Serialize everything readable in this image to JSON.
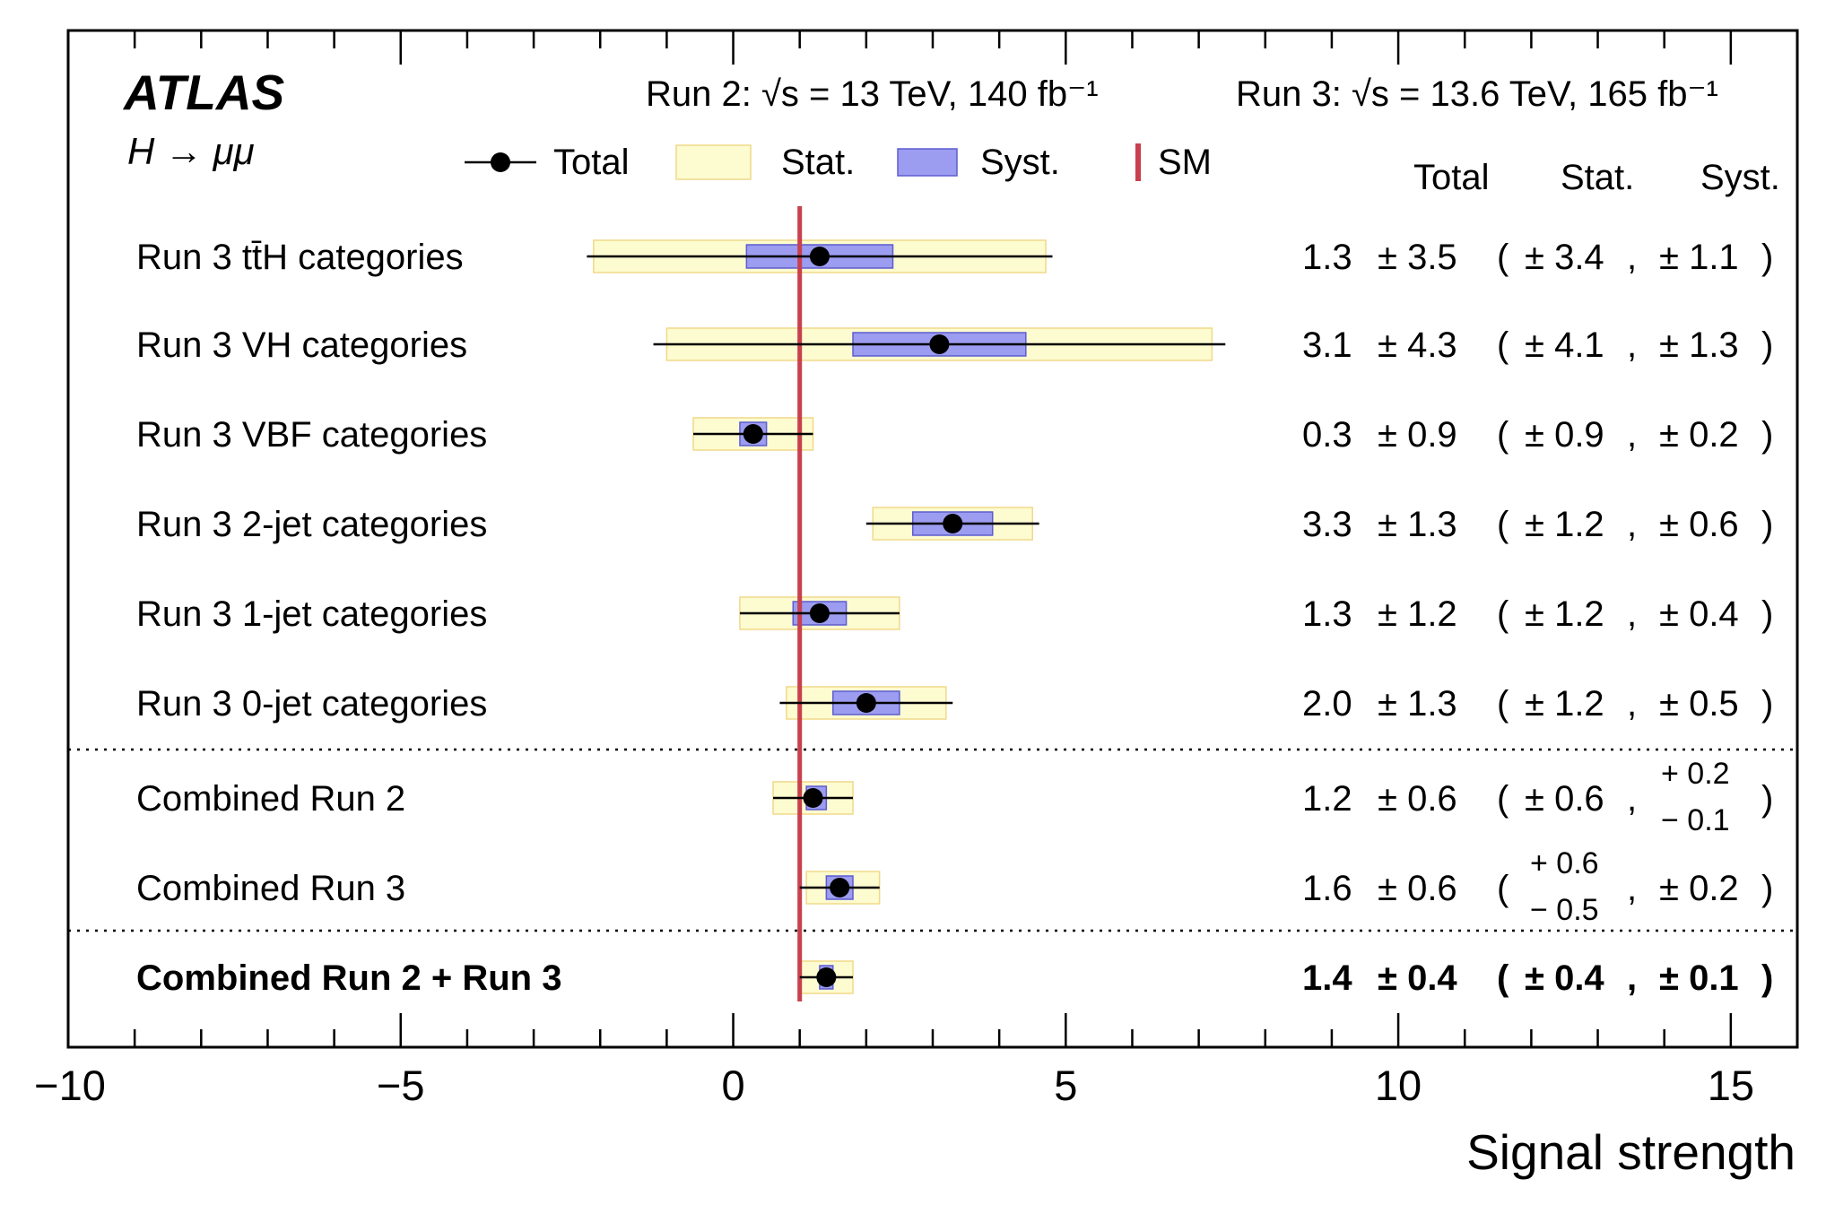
{
  "chart_data": {
    "type": "forest",
    "experiment": "ATLAS",
    "process": "H → μμ",
    "energy_labels": {
      "run2": "Run 2: √s = 13 TeV, 140 fb⁻¹",
      "run3": "Run 3: √s = 13.6 TeV, 165 fb⁻¹"
    },
    "legend": {
      "total": "Total",
      "stat": "Stat.",
      "syst": "Syst.",
      "sm": "SM"
    },
    "column_headers": {
      "total": "Total",
      "stat": "Stat.",
      "syst": "Syst."
    },
    "xlabel": "Signal strength",
    "xlim": [
      -10,
      16
    ],
    "x_ticks": [
      "−10",
      "−5",
      "0",
      "5",
      "10",
      "15"
    ],
    "x_tick_values": [
      -10,
      -5,
      0,
      5,
      10,
      15
    ],
    "sm_value": 1,
    "colors": {
      "stat": "#fdfbd0",
      "stat_edge": "#f0d98a",
      "syst": "#9c9cf0",
      "syst_edge": "#5d5dd0",
      "sm": "#c8404e"
    },
    "entries": [
      {
        "label": "Run 3 tt̄H categories",
        "value": 1.3,
        "total": 3.5,
        "stat": 3.4,
        "syst": 1.1,
        "text": {
          "value": "1.3",
          "total": "± 3.5",
          "open": "(",
          "stat": "± 3.4",
          "comma": ",",
          "syst": "± 1.1",
          "close": ")"
        }
      },
      {
        "label": "Run 3 VH categories",
        "value": 3.1,
        "total": 4.3,
        "stat": 4.1,
        "syst": 1.3,
        "text": {
          "value": "3.1",
          "total": "± 4.3",
          "open": "(",
          "stat": "± 4.1",
          "comma": ",",
          "syst": "± 1.3",
          "close": ")"
        }
      },
      {
        "label": "Run 3 VBF categories",
        "value": 0.3,
        "total": 0.9,
        "stat": 0.9,
        "syst": 0.2,
        "text": {
          "value": "0.3",
          "total": "± 0.9",
          "open": "(",
          "stat": "± 0.9",
          "comma": ",",
          "syst": "± 0.2",
          "close": ")"
        }
      },
      {
        "label": "Run 3 2-jet categories",
        "value": 3.3,
        "total": 1.3,
        "stat": 1.2,
        "syst": 0.6,
        "text": {
          "value": "3.3",
          "total": "± 1.3",
          "open": "(",
          "stat": "± 1.2",
          "comma": ",",
          "syst": "± 0.6",
          "close": ")"
        }
      },
      {
        "label": "Run 3 1-jet categories",
        "value": 1.3,
        "total": 1.2,
        "stat": 1.2,
        "syst": 0.4,
        "text": {
          "value": "1.3",
          "total": "± 1.2",
          "open": "(",
          "stat": "± 1.2",
          "comma": ",",
          "syst": "± 0.4",
          "close": ")"
        }
      },
      {
        "label": "Run 3 0-jet categories",
        "value": 2.0,
        "total": 1.3,
        "stat": 1.2,
        "syst": 0.5,
        "text": {
          "value": "2.0",
          "total": "± 1.3",
          "open": "(",
          "stat": "± 1.2",
          "comma": ",",
          "syst": "± 0.5",
          "close": ")"
        }
      },
      {
        "label": "Combined Run 2",
        "value": 1.2,
        "total": 0.6,
        "stat": 0.6,
        "syst_up": 0.2,
        "syst_down": 0.1,
        "text": {
          "value": "1.2",
          "total": "± 0.6",
          "open": "(",
          "stat": "± 0.6",
          "comma": ",",
          "syst_up": "+ 0.2",
          "syst_down": "− 0.1",
          "close": ")"
        }
      },
      {
        "label": "Combined Run 3",
        "value": 1.6,
        "total": 0.6,
        "stat_up": 0.6,
        "stat_down": 0.5,
        "syst": 0.2,
        "text": {
          "value": "1.6",
          "total": "± 0.6",
          "open": "(",
          "stat_up": "+ 0.6",
          "stat_down": "− 0.5",
          "comma": ",",
          "syst": "± 0.2",
          "close": ")"
        }
      },
      {
        "label": "Combined Run 2 + Run 3",
        "value": 1.4,
        "total": 0.4,
        "stat": 0.4,
        "syst": 0.1,
        "bold": true,
        "text": {
          "value": "1.4",
          "total": "± 0.4",
          "open": "(",
          "stat": "± 0.4",
          "comma": ",",
          "syst": "± 0.1",
          "close": ")"
        }
      }
    ]
  }
}
